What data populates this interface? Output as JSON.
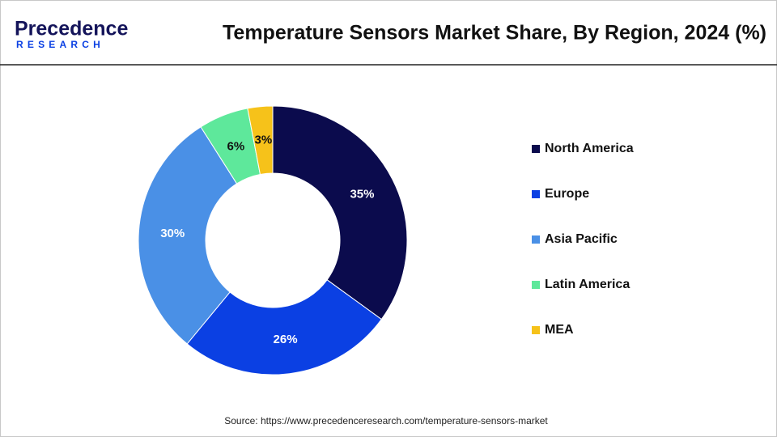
{
  "logo": {
    "name": "Precedence",
    "tagline": "RESEARCH"
  },
  "chart_data": {
    "type": "pie",
    "donut": true,
    "title": "Temperature Sensors Market Share, By Region, 2024 (%)",
    "categories": [
      "North America",
      "Europe",
      "Asia Pacific",
      "Latin America",
      "MEA"
    ],
    "values": [
      35,
      26,
      30,
      6,
      3
    ],
    "value_labels": [
      "35%",
      "26%",
      "30%",
      "6%",
      "3%"
    ],
    "colors": [
      "#0b0b4d",
      "#0b40e3",
      "#4a90e6",
      "#5ee89b",
      "#f6c21a"
    ],
    "legend": "right",
    "source": "Source: https://www.precedenceresearch.com/temperature-sensors-market"
  }
}
